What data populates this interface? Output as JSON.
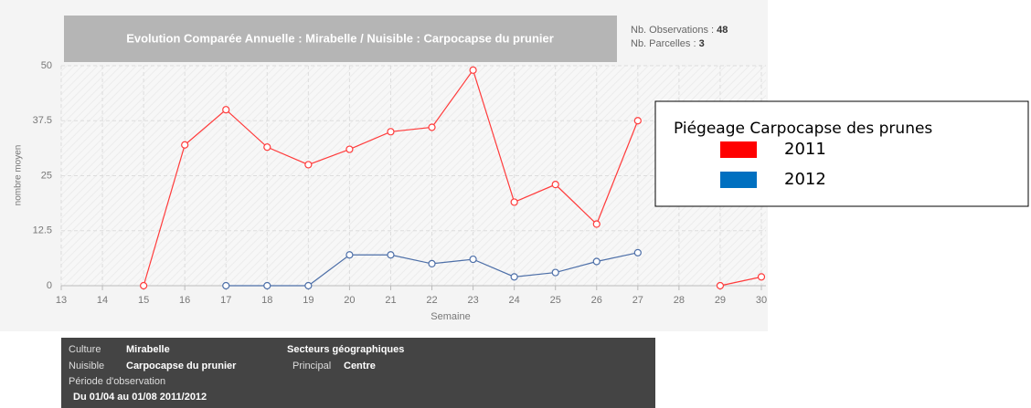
{
  "chart_data": {
    "type": "line",
    "title": "Evolution Comparée Annuelle : Mirabelle / Nuisible : Carpocapse du prunier",
    "xlabel": "Semaine",
    "ylabel": "nombre moyen",
    "x": [
      13,
      14,
      15,
      16,
      17,
      18,
      19,
      20,
      21,
      22,
      23,
      24,
      25,
      26,
      27,
      28,
      29,
      30
    ],
    "xlim": [
      13,
      30
    ],
    "xticks": [
      13,
      14,
      15,
      16,
      17,
      18,
      19,
      20,
      21,
      22,
      23,
      24,
      25,
      26,
      27,
      28,
      29,
      30
    ],
    "ylim": [
      0,
      50
    ],
    "yticks": [
      0,
      12.5,
      25,
      37.5,
      50
    ],
    "grid": true,
    "legend_title": "Piégeage Carpocapse des prunes",
    "series": [
      {
        "name": "2011",
        "color": "#ff3b3b",
        "legend_color": "#ff0000",
        "values": [
          null,
          null,
          0,
          32,
          40,
          31.5,
          27.5,
          31,
          35,
          36,
          49,
          19,
          23,
          14,
          37.5,
          null,
          0,
          2
        ]
      },
      {
        "name": "2012",
        "color": "#4d6fa8",
        "legend_color": "#0070c0",
        "values": [
          null,
          null,
          null,
          null,
          0,
          0,
          0,
          7,
          7,
          5,
          6,
          2,
          3,
          5.5,
          7.5,
          null,
          null,
          null
        ]
      }
    ]
  },
  "stats": {
    "observations_label": "Nb. Observations :",
    "observations": 48,
    "parcelles_label": "Nb. Parcelles :",
    "parcelles": 3
  },
  "info": {
    "culture_label": "Culture",
    "culture": "Mirabelle",
    "nuisible_label": "Nuisible",
    "nuisible": "Carpocapse du prunier",
    "periode_label": "Période d'observation",
    "periode": "Du 01/04 au 01/08 2011/2012",
    "secteurs_label": "Secteurs géographiques",
    "principal_label": "Principal",
    "principal": "Centre"
  }
}
